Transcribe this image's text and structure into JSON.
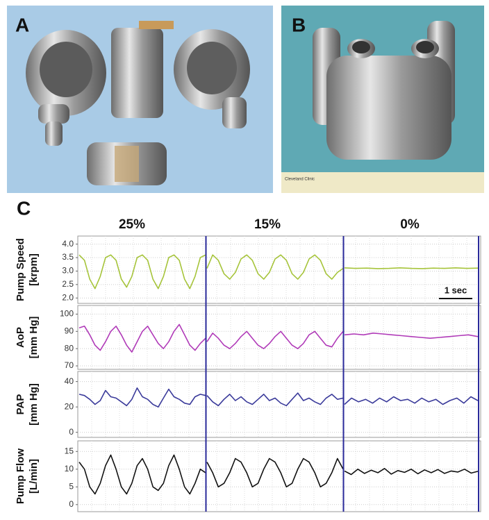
{
  "figure": {
    "panel_labels": [
      "A",
      "B",
      "C"
    ],
    "ruler_text": "Cleveland Clinic",
    "columns": [
      "25%",
      "15%",
      "0%"
    ]
  },
  "chart_data": [
    {
      "type": "line",
      "ylabel": [
        "Pump Speed",
        "[krpm]"
      ],
      "color": "#a6c43a",
      "grid": true,
      "ylim": [
        1.8,
        4.3
      ],
      "yticks": [
        {
          "value": 2,
          "label": "2.0"
        },
        2.5,
        {
          "value": 3,
          "label": "3.0"
        },
        3.5,
        {
          "value": 4,
          "label": "4.0"
        }
      ],
      "annotation": "1 sec",
      "series": [
        {
          "values": [
            3.6,
            3.4,
            2.7,
            2.35,
            2.8,
            3.5,
            3.6,
            3.4,
            2.7,
            2.4,
            2.8,
            3.5,
            3.6,
            3.4,
            2.7,
            2.35,
            2.8,
            3.5,
            3.6,
            3.4,
            2.7,
            2.35,
            2.8,
            3.5,
            3.6
          ]
        },
        {
          "values": [
            3.1,
            3.6,
            3.4,
            2.9,
            2.7,
            2.95,
            3.45,
            3.6,
            3.4,
            2.9,
            2.7,
            2.95,
            3.45,
            3.6,
            3.4,
            2.9,
            2.7,
            2.95,
            3.45,
            3.6,
            3.4,
            2.9,
            2.7,
            2.95,
            3.1
          ]
        },
        {
          "values": [
            3.12,
            3.1,
            3.11,
            3.09,
            3.1,
            3.12,
            3.1,
            3.09,
            3.11,
            3.1,
            3.12,
            3.1,
            3.11
          ]
        }
      ]
    },
    {
      "type": "line",
      "ylabel": [
        "AoP",
        "[mm Hg]"
      ],
      "color": "#b03ab8",
      "grid": true,
      "ylim": [
        68,
        105
      ],
      "yticks": [
        70,
        80,
        90,
        100
      ],
      "series": [
        {
          "values": [
            92,
            93,
            88,
            82,
            79,
            84,
            90,
            93,
            88,
            82,
            78,
            84,
            90,
            93,
            88,
            83,
            80,
            84,
            90,
            94,
            88,
            82,
            79,
            83,
            86
          ]
        },
        {
          "values": [
            84,
            89,
            86,
            82,
            80,
            83,
            87,
            90,
            86,
            82,
            80,
            83,
            87,
            90,
            86,
            82,
            80,
            83,
            88,
            90,
            86,
            82,
            81,
            86,
            90
          ]
        },
        {
          "values": [
            88,
            88.5,
            88,
            89,
            88.5,
            88,
            87.5,
            87,
            86.5,
            86,
            86.5,
            87,
            87.5,
            88,
            87
          ]
        }
      ]
    },
    {
      "type": "line",
      "ylabel": [
        "PAP",
        "[mm Hg]"
      ],
      "color": "#3a3a9a",
      "grid": true,
      "ylim": [
        -4,
        48
      ],
      "yticks": [
        0,
        20,
        40
      ],
      "series": [
        {
          "values": [
            30,
            29,
            26,
            22,
            25,
            33,
            28,
            27,
            24,
            21,
            26,
            35,
            28,
            26,
            22,
            20,
            27,
            34,
            28,
            26,
            23,
            22,
            28,
            30,
            29
          ]
        },
        {
          "values": [
            29,
            24,
            21,
            26,
            30,
            25,
            28,
            24,
            22,
            26,
            30,
            25,
            27,
            23,
            21,
            26,
            31,
            25,
            27,
            24,
            22,
            27,
            30,
            26,
            27
          ]
        },
        {
          "values": [
            22,
            27,
            24,
            26,
            23,
            27,
            24,
            28,
            25,
            26,
            23,
            27,
            24,
            26,
            22,
            25,
            27,
            23,
            28,
            25
          ]
        }
      ]
    },
    {
      "type": "line",
      "ylabel": [
        "Pump Flow",
        "[L/min]"
      ],
      "color": "#111111",
      "grid": true,
      "ylim": [
        -2,
        18
      ],
      "yticks": [
        0,
        5,
        10,
        15
      ],
      "series": [
        {
          "values": [
            12,
            10,
            5,
            3,
            6,
            11,
            14,
            10,
            5,
            3,
            6,
            11,
            13,
            10,
            5,
            4,
            6,
            11,
            14,
            10,
            5,
            3,
            6,
            10,
            9
          ]
        },
        {
          "values": [
            12,
            9,
            5,
            6,
            9,
            13,
            12,
            9,
            5,
            6,
            10,
            13,
            12,
            9,
            5,
            6,
            10,
            13,
            12,
            9,
            5,
            6,
            9,
            13,
            10
          ]
        },
        {
          "values": [
            9.5,
            8.5,
            10,
            8.8,
            9.7,
            9,
            10.2,
            8.6,
            9.6,
            9.1,
            10,
            8.7,
            9.8,
            9,
            9.9,
            8.8,
            9.5,
            9.2,
            10,
            8.9,
            9.4
          ]
        }
      ]
    }
  ]
}
